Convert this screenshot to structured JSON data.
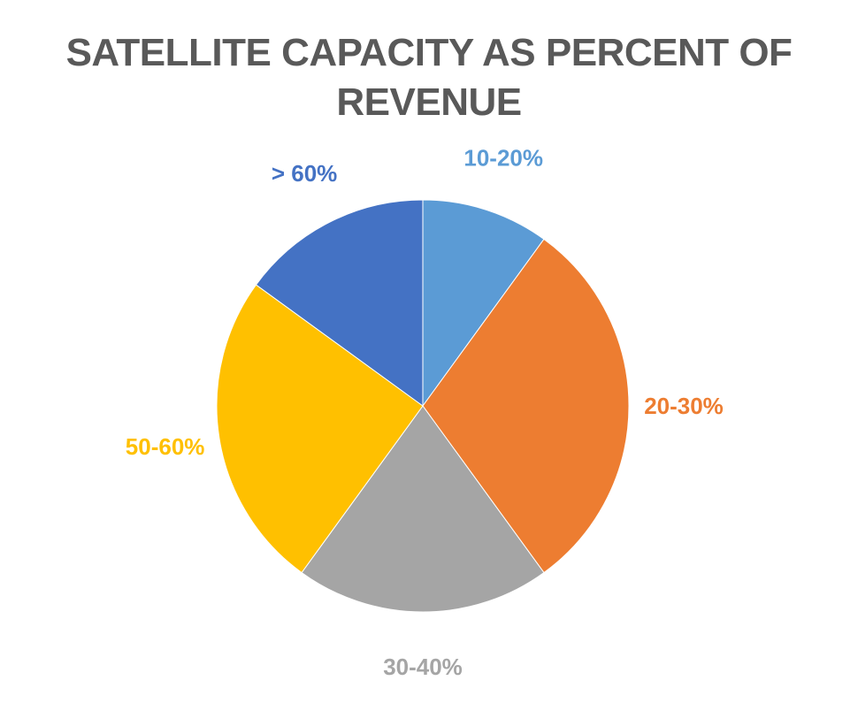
{
  "chart_data": {
    "type": "pie",
    "title": "SATELLITE CAPACITY AS PERCENT OF REVENUE",
    "categories": [
      "10-20%",
      "20-30%",
      "30-40%",
      "50-60%",
      "> 60%"
    ],
    "values": [
      10,
      30,
      20,
      25,
      15
    ],
    "colors": [
      "#5B9BD5",
      "#ED7D31",
      "#A5A5A5",
      "#FFC000",
      "#4472C4"
    ],
    "start_angle_deg": 0,
    "direction": "clockwise",
    "data_labels": "outside",
    "legend": "none"
  }
}
